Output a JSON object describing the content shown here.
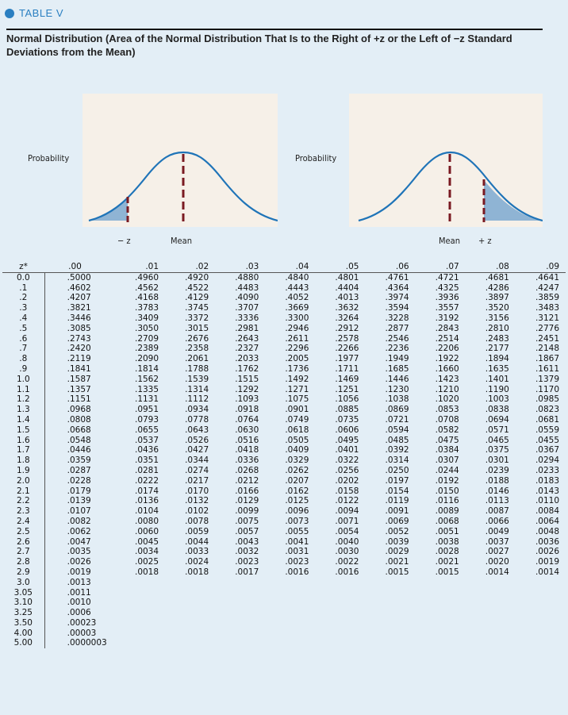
{
  "table_label": "TABLE V",
  "title": "Normal Distribution (Area of the Normal Distribution That Is to the Right of +z or the Left of −z Standard Deviations from the Mean)",
  "colors": {
    "accent": "#2a7fc1",
    "curve": "#1f74b8",
    "shade": "#8fb4d4",
    "dashed": "#7a1a22",
    "background": "#e3eef6",
    "panel": "#f6f0e8"
  },
  "figures": {
    "left": {
      "ylabel": "Probability",
      "label_neg_z": "− z",
      "label_mean": "Mean"
    },
    "right": {
      "ylabel": "Probability",
      "label_mean": "Mean",
      "label_pos_z": "+ z"
    }
  },
  "table": {
    "columns": [
      "z*",
      ".00",
      ".01",
      ".02",
      ".03",
      ".04",
      ".05",
      ".06",
      ".07",
      ".08",
      ".09"
    ],
    "rows": [
      [
        "0.0",
        ".5000",
        ".4960",
        ".4920",
        ".4880",
        ".4840",
        ".4801",
        ".4761",
        ".4721",
        ".4681",
        ".4641"
      ],
      [
        ".1",
        ".4602",
        ".4562",
        ".4522",
        ".4483",
        ".4443",
        ".4404",
        ".4364",
        ".4325",
        ".4286",
        ".4247"
      ],
      [
        ".2",
        ".4207",
        ".4168",
        ".4129",
        ".4090",
        ".4052",
        ".4013",
        ".3974",
        ".3936",
        ".3897",
        ".3859"
      ],
      [
        ".3",
        ".3821",
        ".3783",
        ".3745",
        ".3707",
        ".3669",
        ".3632",
        ".3594",
        ".3557",
        ".3520",
        ".3483"
      ],
      [
        ".4",
        ".3446",
        ".3409",
        ".3372",
        ".3336",
        ".3300",
        ".3264",
        ".3228",
        ".3192",
        ".3156",
        ".3121"
      ],
      [
        ".5",
        ".3085",
        ".3050",
        ".3015",
        ".2981",
        ".2946",
        ".2912",
        ".2877",
        ".2843",
        ".2810",
        ".2776"
      ],
      [
        ".6",
        ".2743",
        ".2709",
        ".2676",
        ".2643",
        ".2611",
        ".2578",
        ".2546",
        ".2514",
        ".2483",
        ".2451"
      ],
      [
        ".7",
        ".2420",
        ".2389",
        ".2358",
        ".2327",
        ".2296",
        ".2266",
        ".2236",
        ".2206",
        ".2177",
        ".2148"
      ],
      [
        ".8",
        ".2119",
        ".2090",
        ".2061",
        ".2033",
        ".2005",
        ".1977",
        ".1949",
        ".1922",
        ".1894",
        ".1867"
      ],
      [
        ".9",
        ".1841",
        ".1814",
        ".1788",
        ".1762",
        ".1736",
        ".1711",
        ".1685",
        ".1660",
        ".1635",
        ".1611"
      ],
      [
        "1.0",
        ".1587",
        ".1562",
        ".1539",
        ".1515",
        ".1492",
        ".1469",
        ".1446",
        ".1423",
        ".1401",
        ".1379"
      ],
      [
        "1.1",
        ".1357",
        ".1335",
        ".1314",
        ".1292",
        ".1271",
        ".1251",
        ".1230",
        ".1210",
        ".1190",
        ".1170"
      ],
      [
        "1.2",
        ".1151",
        ".1131",
        ".1112",
        ".1093",
        ".1075",
        ".1056",
        ".1038",
        ".1020",
        ".1003",
        ".0985"
      ],
      [
        "1.3",
        ".0968",
        ".0951",
        ".0934",
        ".0918",
        ".0901",
        ".0885",
        ".0869",
        ".0853",
        ".0838",
        ".0823"
      ],
      [
        "1.4",
        ".0808",
        ".0793",
        ".0778",
        ".0764",
        ".0749",
        ".0735",
        ".0721",
        ".0708",
        ".0694",
        ".0681"
      ],
      [
        "1.5",
        ".0668",
        ".0655",
        ".0643",
        ".0630",
        ".0618",
        ".0606",
        ".0594",
        ".0582",
        ".0571",
        ".0559"
      ],
      [
        "1.6",
        ".0548",
        ".0537",
        ".0526",
        ".0516",
        ".0505",
        ".0495",
        ".0485",
        ".0475",
        ".0465",
        ".0455"
      ],
      [
        "1.7",
        ".0446",
        ".0436",
        ".0427",
        ".0418",
        ".0409",
        ".0401",
        ".0392",
        ".0384",
        ".0375",
        ".0367"
      ],
      [
        "1.8",
        ".0359",
        ".0351",
        ".0344",
        ".0336",
        ".0329",
        ".0322",
        ".0314",
        ".0307",
        ".0301",
        ".0294"
      ],
      [
        "1.9",
        ".0287",
        ".0281",
        ".0274",
        ".0268",
        ".0262",
        ".0256",
        ".0250",
        ".0244",
        ".0239",
        ".0233"
      ],
      [
        "2.0",
        ".0228",
        ".0222",
        ".0217",
        ".0212",
        ".0207",
        ".0202",
        ".0197",
        ".0192",
        ".0188",
        ".0183"
      ],
      [
        "2.1",
        ".0179",
        ".0174",
        ".0170",
        ".0166",
        ".0162",
        ".0158",
        ".0154",
        ".0150",
        ".0146",
        ".0143"
      ],
      [
        "2.2",
        ".0139",
        ".0136",
        ".0132",
        ".0129",
        ".0125",
        ".0122",
        ".0119",
        ".0116",
        ".0113",
        ".0110"
      ],
      [
        "2.3",
        ".0107",
        ".0104",
        ".0102",
        ".0099",
        ".0096",
        ".0094",
        ".0091",
        ".0089",
        ".0087",
        ".0084"
      ],
      [
        "2.4",
        ".0082",
        ".0080",
        ".0078",
        ".0075",
        ".0073",
        ".0071",
        ".0069",
        ".0068",
        ".0066",
        ".0064"
      ],
      [
        "2.5",
        ".0062",
        ".0060",
        ".0059",
        ".0057",
        ".0055",
        ".0054",
        ".0052",
        ".0051",
        ".0049",
        ".0048"
      ],
      [
        "2.6",
        ".0047",
        ".0045",
        ".0044",
        ".0043",
        ".0041",
        ".0040",
        ".0039",
        ".0038",
        ".0037",
        ".0036"
      ],
      [
        "2.7",
        ".0035",
        ".0034",
        ".0033",
        ".0032",
        ".0031",
        ".0030",
        ".0029",
        ".0028",
        ".0027",
        ".0026"
      ],
      [
        "2.8",
        ".0026",
        ".0025",
        ".0024",
        ".0023",
        ".0023",
        ".0022",
        ".0021",
        ".0021",
        ".0020",
        ".0019"
      ],
      [
        "2.9",
        ".0019",
        ".0018",
        ".0018",
        ".0017",
        ".0016",
        ".0016",
        ".0015",
        ".0015",
        ".0014",
        ".0014"
      ],
      [
        "3.0",
        ".0013"
      ],
      [
        "3.05",
        ".0011"
      ],
      [
        "3.10",
        ".0010"
      ],
      [
        "3.25",
        ".0006"
      ],
      [
        "3.50",
        ".00023"
      ],
      [
        "4.00",
        ".00003"
      ],
      [
        "5.00",
        ".0000003"
      ]
    ]
  }
}
